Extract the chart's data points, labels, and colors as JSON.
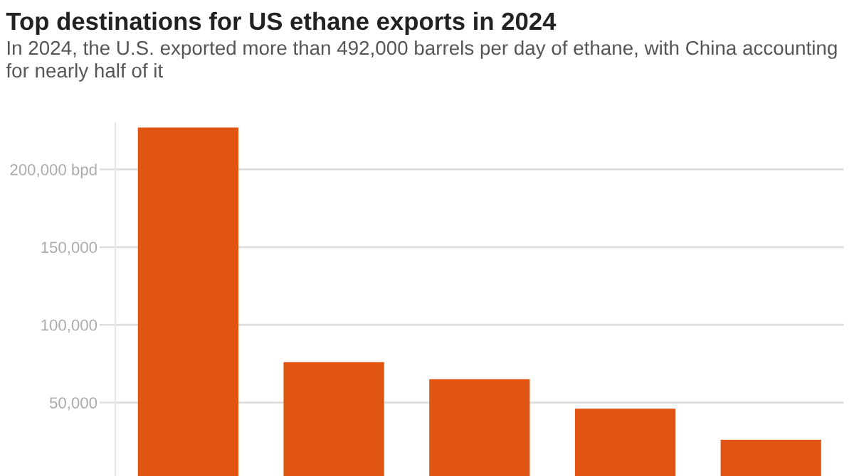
{
  "chart_data": {
    "type": "bar",
    "title": "Top destinations for US ethane exports in 2024",
    "subtitle": "In 2024, the U.S. exported more than 492,000 barrels per day of ethane, with China accounting for nearly half of it",
    "categories": [
      null,
      null,
      null,
      null,
      null
    ],
    "values": [
      227000,
      76000,
      65000,
      46000,
      26000
    ],
    "color": "#e05512",
    "ylim": [
      0,
      230000
    ],
    "yticks": [
      {
        "value": 50000,
        "label": "50,000"
      },
      {
        "value": 100000,
        "label": "100,000"
      },
      {
        "value": 150000,
        "label": "150,000"
      },
      {
        "value": 200000,
        "label": "200,000 bpd"
      }
    ],
    "grid": "y",
    "tick_labels": "y",
    "legend": false
  }
}
